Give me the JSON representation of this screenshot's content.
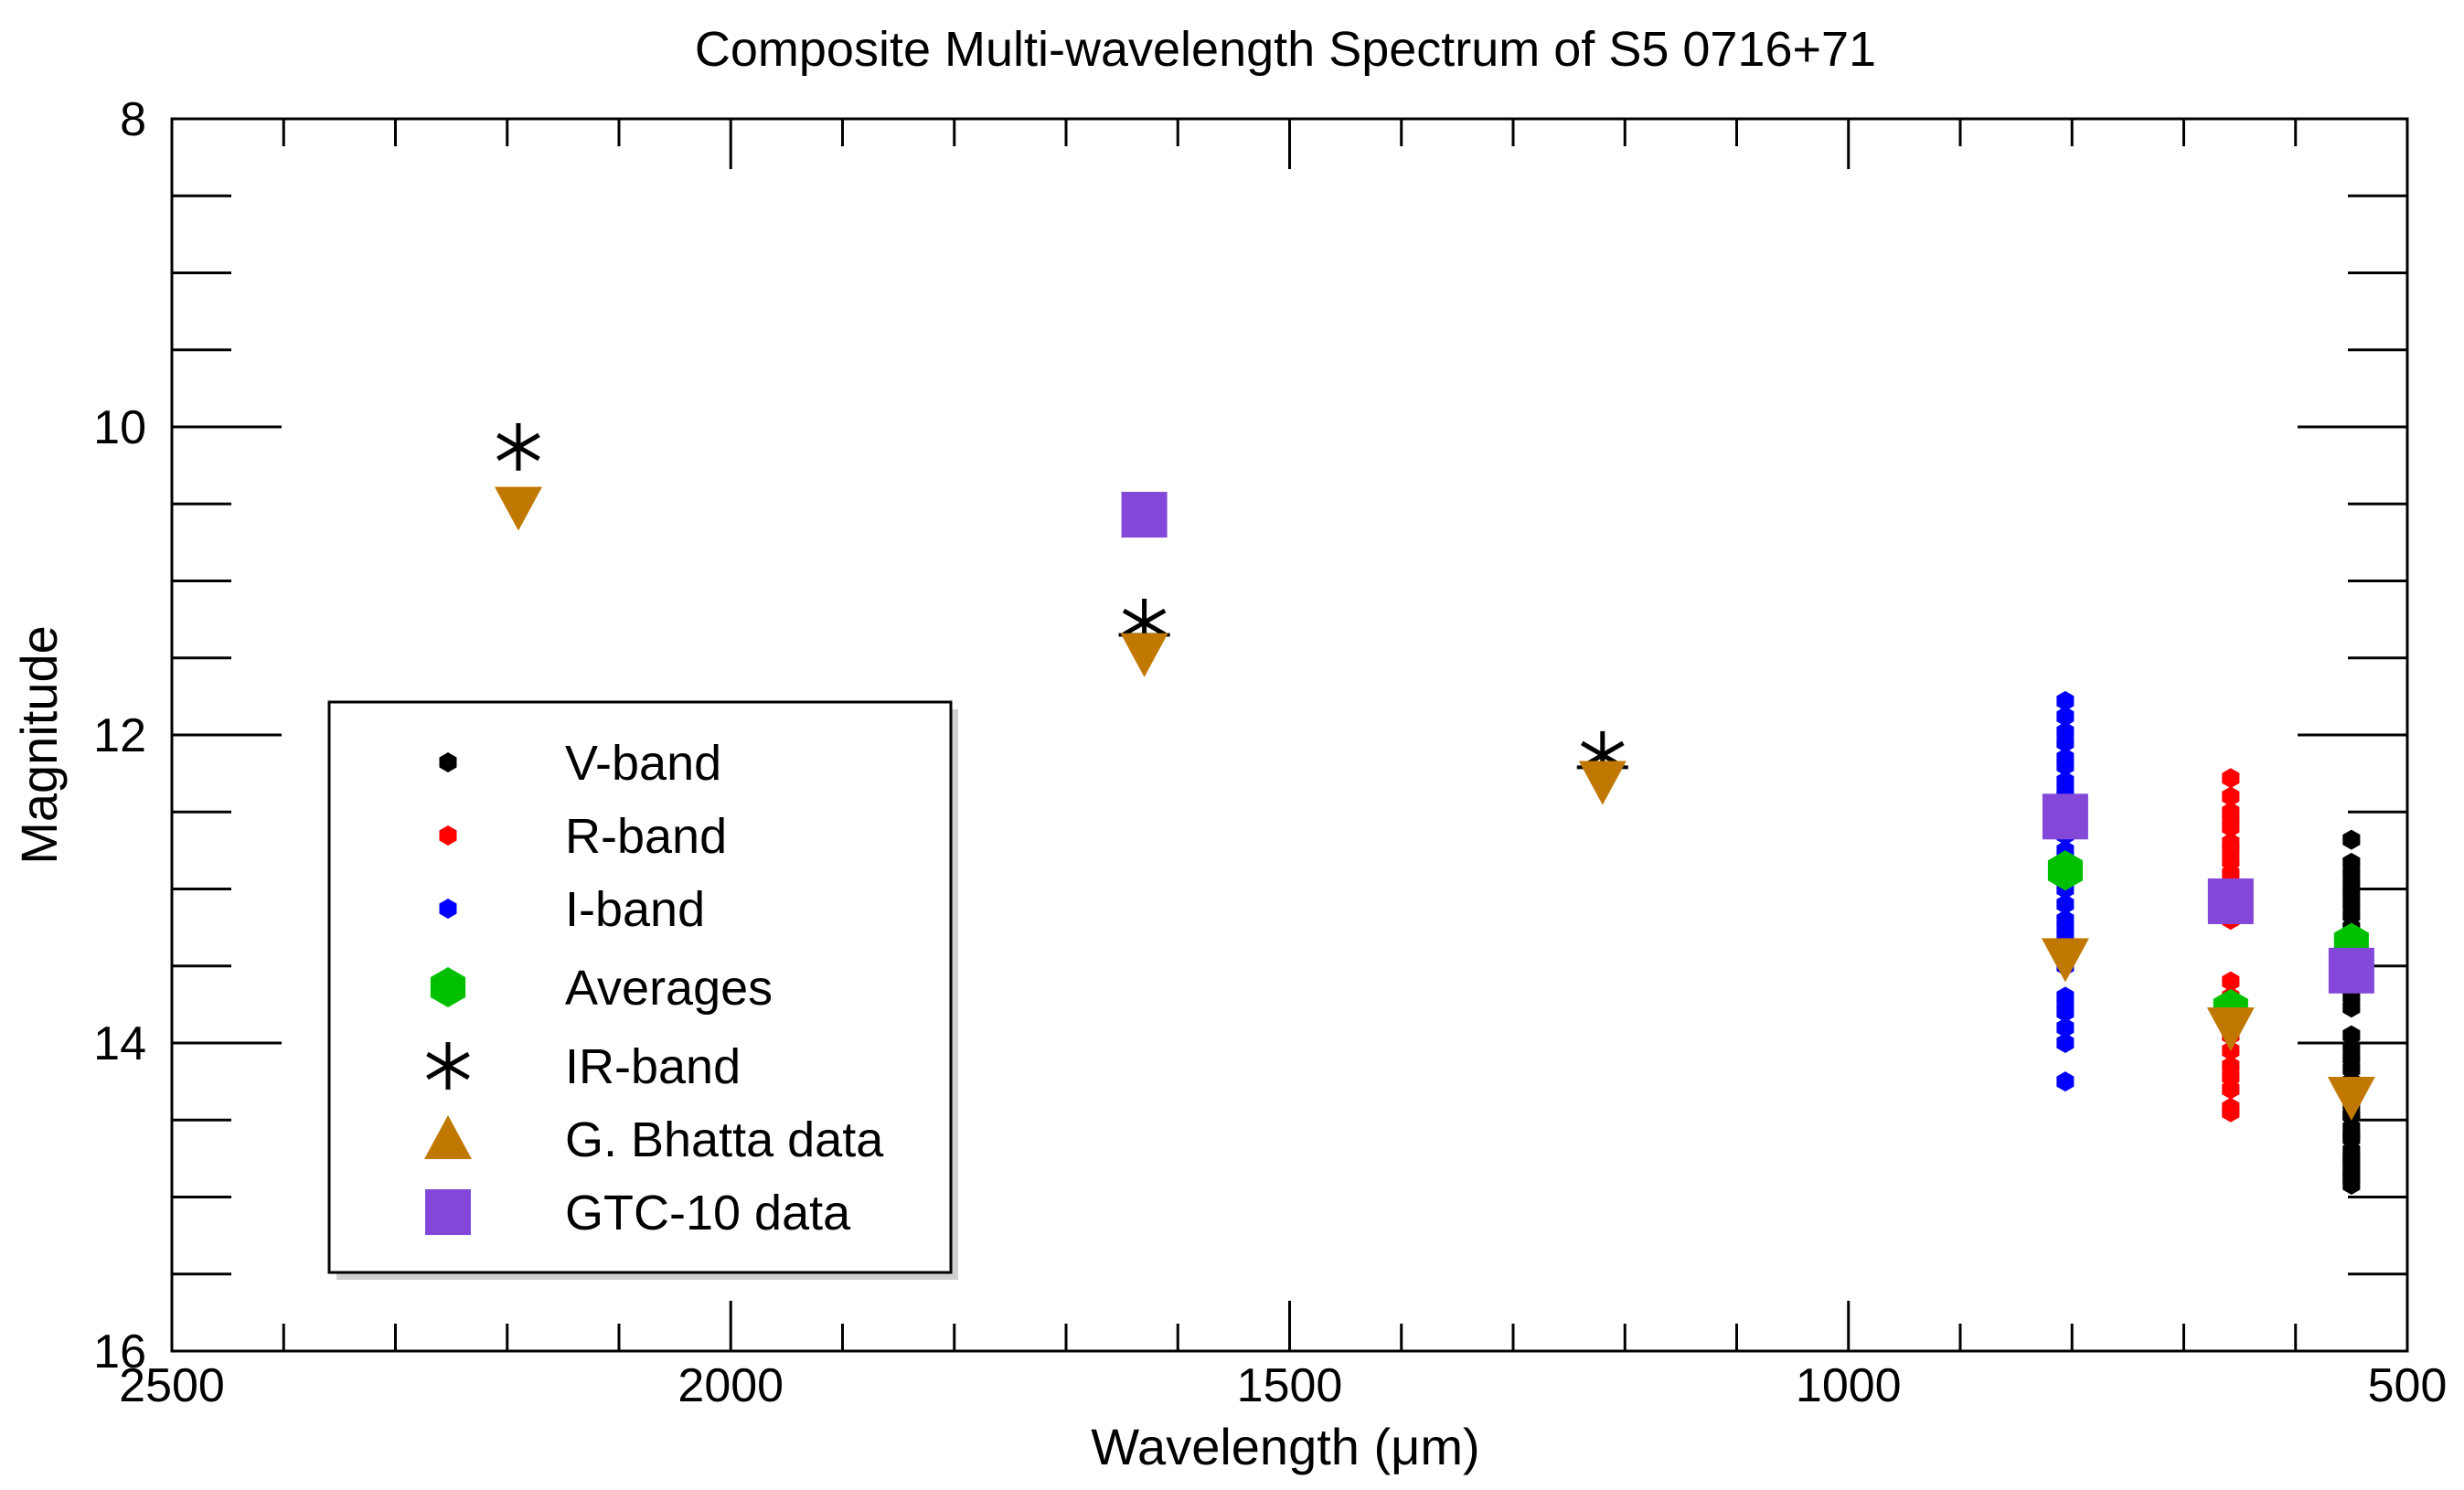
{
  "chart_data": {
    "type": "scatter",
    "title": "Composite Multi-wavelength Spectrum of S5 0716+71",
    "xlabel": "Wavelength (μm)",
    "ylabel": "Magnitude",
    "xlim": [
      2500,
      500
    ],
    "ylim": [
      16,
      8
    ],
    "y_inverted": true,
    "x_ticks": [
      "2500",
      "2000",
      "1500",
      "1000",
      "500"
    ],
    "y_ticks": [
      "8",
      "10",
      "12",
      "14",
      "16"
    ],
    "grid": false,
    "legend_position": "lower-left",
    "series": [
      {
        "name": "V-band",
        "marker": "small-hexagon",
        "color": "#000000",
        "x": [
          550,
          550,
          550,
          550,
          550,
          550,
          550,
          550,
          550,
          550,
          550,
          550,
          550,
          550,
          550,
          550,
          550,
          550,
          550,
          550,
          550,
          550,
          550,
          550,
          550,
          550,
          550,
          550,
          550,
          550,
          550,
          550,
          550,
          550
        ],
        "y": [
          12.68,
          12.83,
          12.9,
          12.97,
          13.03,
          13.1,
          13.17,
          13.25,
          13.32,
          13.4,
          13.47,
          13.55,
          13.62,
          13.7,
          13.77,
          13.95,
          14.03,
          14.1,
          14.17,
          14.25,
          14.32,
          14.4,
          14.47,
          14.55,
          14.62,
          14.7,
          14.77,
          14.85,
          14.92,
          14.47,
          14.6,
          14.75,
          14.82,
          14.88
        ]
      },
      {
        "name": "R-band",
        "marker": "small-hexagon",
        "color": "#ff0000",
        "x": [
          658,
          658,
          658,
          658,
          658,
          658,
          658,
          658,
          658,
          658,
          658,
          658,
          658,
          658,
          658,
          658,
          658,
          658,
          658,
          658,
          658,
          658,
          658
        ],
        "y": [
          12.28,
          12.4,
          12.5,
          12.6,
          12.7,
          12.82,
          12.9,
          13.0,
          13.1,
          13.2,
          13.6,
          13.7,
          13.8,
          13.9,
          13.95,
          14.05,
          14.15,
          14.22,
          14.3,
          14.42,
          14.45,
          12.55,
          12.75
        ]
      },
      {
        "name": "I-band",
        "marker": "small-hexagon",
        "color": "#0000ff",
        "x": [
          806,
          806,
          806,
          806,
          806,
          806,
          806,
          806,
          806,
          806,
          806,
          806,
          806,
          806,
          806,
          806,
          806,
          806,
          806,
          806,
          806,
          806,
          806,
          806,
          806,
          806
        ],
        "y": [
          11.78,
          11.88,
          11.98,
          12.05,
          12.15,
          12.3,
          12.4,
          12.5,
          12.65,
          12.75,
          12.85,
          13.0,
          13.1,
          13.2,
          13.3,
          13.4,
          13.5,
          13.7,
          13.8,
          13.9,
          14.0,
          14.25,
          12.2,
          12.35,
          13.25,
          13.75
        ]
      },
      {
        "name": "Averages",
        "marker": "hexagon",
        "color": "#00c000",
        "x": [
          806,
          658,
          550
        ],
        "y": [
          12.88,
          13.78,
          13.35
        ]
      },
      {
        "name": "IR-band",
        "marker": "asterisk",
        "color": "#000000",
        "x": [
          2190,
          1630,
          1220
        ],
        "y": [
          10.13,
          11.27,
          12.13
        ],
        "yerr": [
          0.0,
          0.08,
          0.08
        ]
      },
      {
        "name": "G. Bhatta data",
        "marker": "triangle",
        "color": "#c07800",
        "x": [
          2190,
          1630,
          1220,
          806,
          658,
          550
        ],
        "y": [
          10.52,
          11.47,
          12.3,
          13.45,
          13.9,
          14.35
        ]
      },
      {
        "name": "GTC-10 data",
        "marker": "square",
        "color": "#8448d8",
        "x": [
          1630,
          806,
          658,
          550
        ],
        "y": [
          10.57,
          12.53,
          13.08,
          13.53
        ]
      }
    ]
  }
}
